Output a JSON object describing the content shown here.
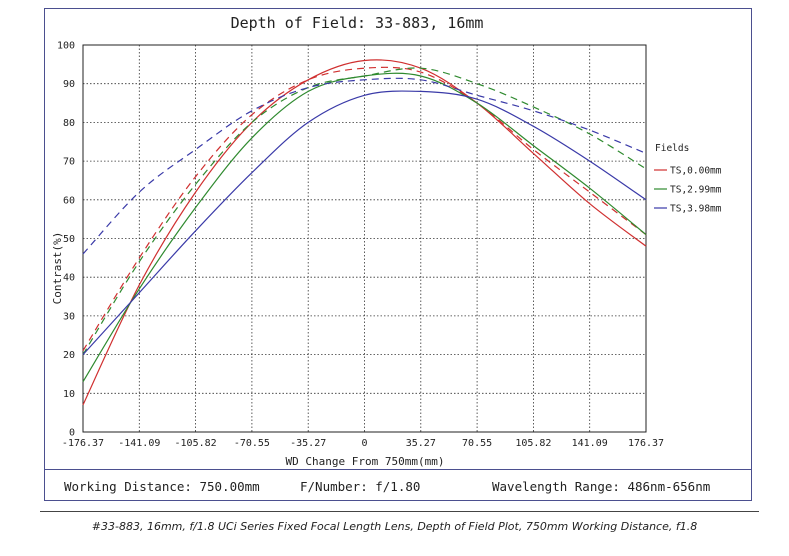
{
  "chart_data": {
    "type": "line",
    "title": "Depth of Field: 33-883, 16mm",
    "xlabel": "WD Change From 750mm(mm)",
    "ylabel": "Contrast(%)",
    "xlim": [
      -176.37,
      176.37
    ],
    "ylim": [
      0,
      100
    ],
    "x_ticks": [
      "-176.37",
      "-141.09",
      "-105.82",
      "-70.55",
      "-35.27",
      "0",
      "35.27",
      "70.55",
      "105.82",
      "141.09",
      "176.37"
    ],
    "y_ticks": [
      "0",
      "10",
      "20",
      "30",
      "40",
      "50",
      "60",
      "70",
      "80",
      "90",
      "100"
    ],
    "grid": true,
    "legend_title": "Fields",
    "legend_position": "right",
    "series": [
      {
        "name": "TS,0.00mm",
        "color": "#d03030",
        "dash": false,
        "x": [
          -176.37,
          -141.09,
          -105.82,
          -70.55,
          -35.27,
          0,
          35.27,
          70.55,
          105.82,
          141.09,
          176.37
        ],
        "values": [
          7,
          38,
          62,
          80,
          91,
          96,
          94,
          85,
          72,
          59,
          48
        ]
      },
      {
        "name": "TS,0.00mm",
        "color": "#d03030",
        "dash": true,
        "x": [
          -176.37,
          -141.09,
          -105.82,
          -70.55,
          -35.27,
          0,
          35.27,
          70.55,
          105.82,
          141.09,
          176.37
        ],
        "values": [
          21,
          45,
          66,
          82,
          91,
          94,
          93,
          85,
          73,
          62,
          51
        ]
      },
      {
        "name": "TS,2.99mm",
        "color": "#2f8a2f",
        "dash": false,
        "x": [
          -176.37,
          -141.09,
          -105.82,
          -70.55,
          -35.27,
          0,
          35.27,
          70.55,
          105.82,
          141.09,
          176.37
        ],
        "values": [
          13,
          37,
          58,
          76,
          88,
          92,
          92,
          85,
          74,
          63,
          51
        ]
      },
      {
        "name": "TS,2.99mm",
        "color": "#2f8a2f",
        "dash": true,
        "x": [
          -176.37,
          -141.09,
          -105.82,
          -70.55,
          -35.27,
          0,
          35.27,
          70.55,
          105.82,
          141.09,
          176.37
        ],
        "values": [
          20,
          44,
          64,
          80,
          89,
          92,
          94,
          90,
          84,
          77,
          68
        ]
      },
      {
        "name": "TS,3.98mm",
        "color": "#3a3aa8",
        "dash": false,
        "x": [
          -176.37,
          -141.09,
          -105.82,
          -70.55,
          -35.27,
          0,
          35.27,
          70.55,
          105.82,
          141.09,
          176.37
        ],
        "values": [
          20,
          36,
          52,
          67,
          80,
          87,
          88,
          86,
          79,
          70,
          60
        ]
      },
      {
        "name": "TS,3.98mm",
        "color": "#3a3aa8",
        "dash": true,
        "x": [
          -176.37,
          -141.09,
          -105.82,
          -70.55,
          -35.27,
          0,
          35.27,
          70.55,
          105.82,
          141.09,
          176.37
        ],
        "values": [
          46,
          62,
          73,
          83,
          89,
          91,
          91,
          87,
          83,
          78,
          72
        ]
      }
    ]
  },
  "legend_items": [
    {
      "label": "TS,0.00mm",
      "color": "#d03030"
    },
    {
      "label": "TS,2.99mm",
      "color": "#2f8a2f"
    },
    {
      "label": "TS,3.98mm",
      "color": "#3a3aa8"
    }
  ],
  "info": {
    "working_distance": "Working Distance: 750.00mm",
    "f_number": "F/Number: f/1.80",
    "wavelength": "Wavelength Range: 486nm-656nm"
  },
  "caption": "#33-883, 16mm, f/1.8 UCi Series Fixed Focal Length Lens, Depth of Field Plot, 750mm Working Distance, f1.8"
}
